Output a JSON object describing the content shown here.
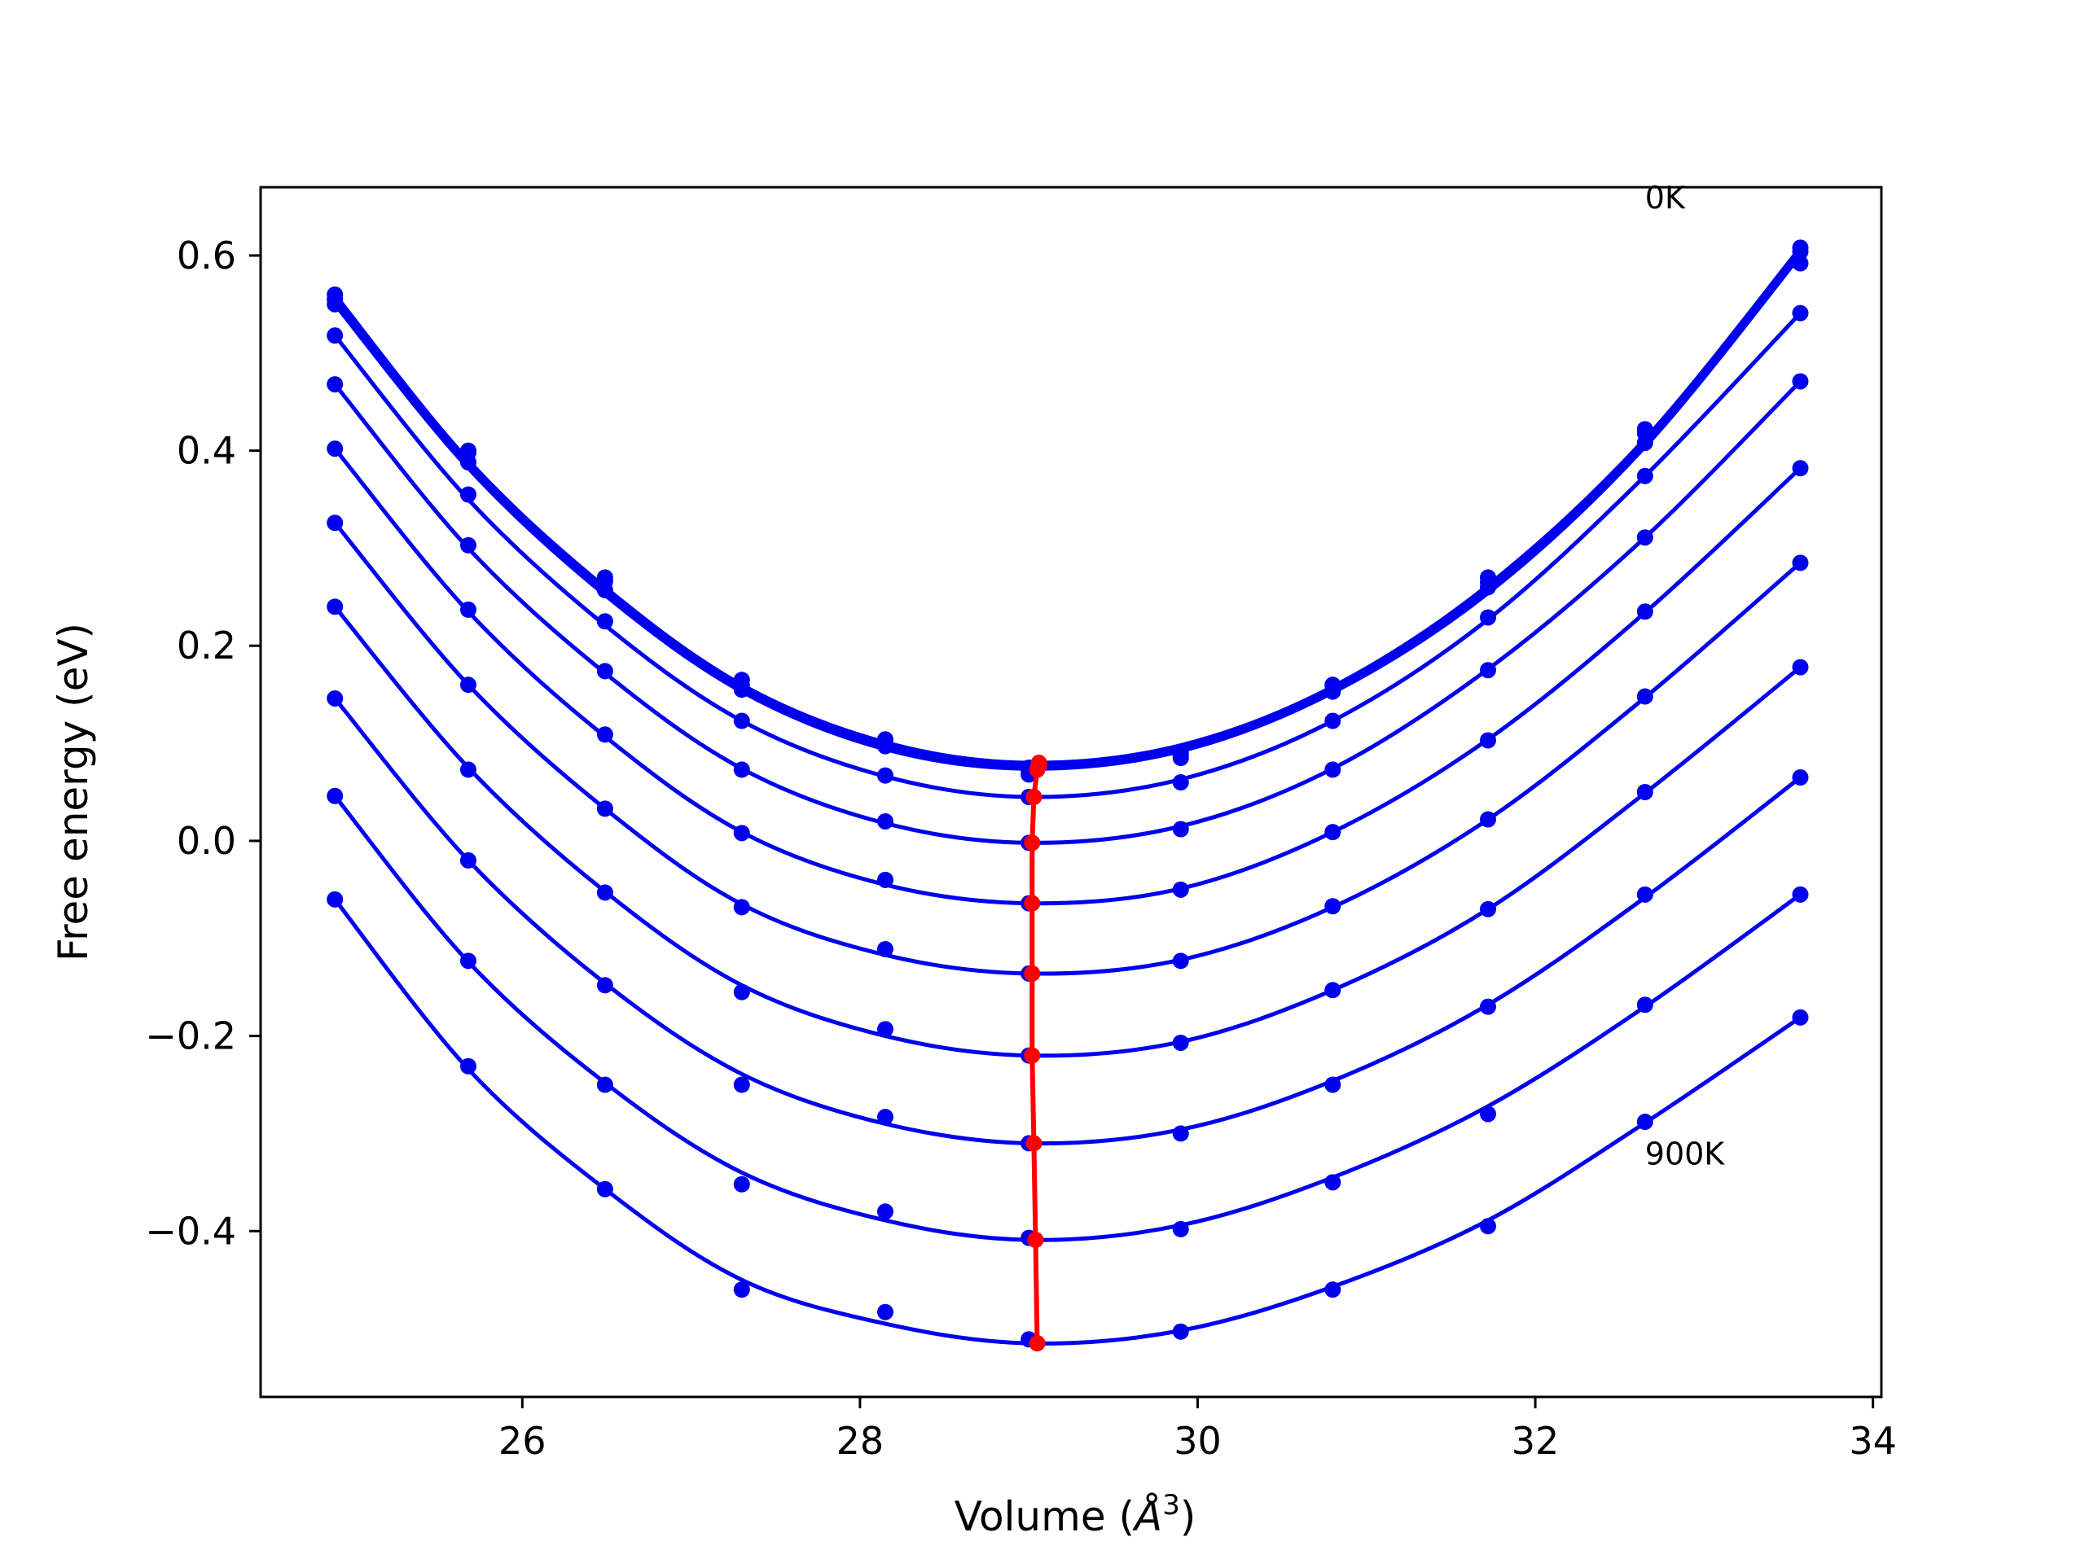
{
  "chart_data": {
    "type": "line",
    "xlabel": "Volume",
    "xlabel_unit": "3",
    "xlabel_unit_symbol": "Å",
    "ylabel": "Free energy (eV)",
    "xlim": [
      24.45,
      34.05
    ],
    "ylim": [
      -0.57,
      0.67
    ],
    "x_ticks": [
      26,
      28,
      30,
      32,
      34
    ],
    "x_tick_labels": [
      "26",
      "28",
      "30",
      "32",
      "34"
    ],
    "y_ticks": [
      -0.4,
      -0.2,
      0.0,
      0.2,
      0.4,
      0.6
    ],
    "y_tick_labels": [
      "−0.4",
      "−0.2",
      "0.0",
      "0.2",
      "0.4",
      "0.6"
    ],
    "grid": false,
    "annotations": [
      {
        "text": "0K",
        "x": 32.65,
        "y": 0.66
      },
      {
        "text": "900K",
        "x": 32.65,
        "y": -0.32
      }
    ],
    "volumes": [
      24.89,
      25.68,
      26.49,
      27.3,
      28.15,
      29.0,
      29.9,
      30.8,
      31.72,
      32.65,
      33.57
    ],
    "series": [
      {
        "points": [
          0.56,
          0.4,
          0.27,
          0.165,
          0.104,
          0.075,
          0.09,
          0.16,
          0.27,
          0.422,
          0.608
        ],
        "fit": [
          0.56,
          0.39,
          0.26,
          0.16,
          0.101,
          0.08,
          0.098,
          0.158,
          0.262,
          0.412,
          0.608
        ],
        "min": [
          29.06,
          0.08
        ]
      },
      {
        "points": [
          0.555,
          0.398,
          0.266,
          0.16,
          0.1,
          0.072,
          0.088,
          0.158,
          0.265,
          0.418,
          0.604
        ],
        "fit": [
          0.555,
          0.386,
          0.256,
          0.157,
          0.098,
          0.077,
          0.095,
          0.155,
          0.258,
          0.408,
          0.604
        ],
        "min": [
          29.06,
          0.077
        ]
      },
      {
        "points": [
          0.55,
          0.388,
          0.257,
          0.155,
          0.097,
          0.068,
          0.085,
          0.153,
          0.26,
          0.408,
          0.592
        ],
        "fit": [
          0.55,
          0.382,
          0.252,
          0.153,
          0.094,
          0.074,
          0.092,
          0.152,
          0.254,
          0.404,
          0.6
        ],
        "min": [
          29.05,
          0.073
        ]
      },
      {
        "points": [
          0.518,
          0.355,
          0.225,
          0.123,
          0.067,
          0.045,
          0.06,
          0.123,
          0.229,
          0.374,
          0.541
        ],
        "fit": [
          0.518,
          0.35,
          0.221,
          0.123,
          0.066,
          0.045,
          0.063,
          0.123,
          0.227,
          0.374,
          0.541
        ],
        "min": [
          29.03,
          0.045
        ]
      },
      {
        "points": [
          0.468,
          0.303,
          0.174,
          0.073,
          0.02,
          -0.002,
          0.012,
          0.073,
          0.175,
          0.311,
          0.471
        ],
        "fit": [
          0.468,
          0.3,
          0.172,
          0.074,
          0.018,
          -0.002,
          0.015,
          0.074,
          0.176,
          0.311,
          0.471
        ],
        "min": [
          29.02,
          -0.002
        ]
      },
      {
        "points": [
          0.402,
          0.237,
          0.109,
          0.008,
          -0.04,
          -0.064,
          -0.05,
          0.009,
          0.103,
          0.235,
          0.382
        ],
        "fit": [
          0.402,
          0.235,
          0.107,
          0.009,
          -0.045,
          -0.064,
          -0.049,
          0.009,
          0.104,
          0.234,
          0.382
        ],
        "min": [
          29.02,
          -0.064
        ]
      },
      {
        "points": [
          0.326,
          0.16,
          0.033,
          -0.068,
          -0.111,
          -0.136,
          -0.123,
          -0.067,
          0.022,
          0.148,
          0.285
        ],
        "fit": [
          0.326,
          0.16,
          0.033,
          -0.065,
          -0.117,
          -0.136,
          -0.122,
          -0.068,
          0.022,
          0.147,
          0.285
        ],
        "min": [
          29.02,
          -0.136
        ]
      },
      {
        "points": [
          0.24,
          0.073,
          -0.053,
          -0.155,
          -0.193,
          -0.22,
          -0.207,
          -0.153,
          -0.07,
          0.05,
          0.178
        ],
        "fit": [
          0.24,
          0.075,
          -0.052,
          -0.148,
          -0.2,
          -0.22,
          -0.206,
          -0.153,
          -0.07,
          0.049,
          0.178
        ],
        "min": [
          29.02,
          -0.22
        ]
      },
      {
        "points": [
          0.146,
          -0.02,
          -0.148,
          -0.25,
          -0.283,
          -0.31,
          -0.3,
          -0.25,
          -0.17,
          -0.055,
          0.065
        ],
        "fit": [
          0.146,
          -0.02,
          -0.146,
          -0.239,
          -0.29,
          -0.31,
          -0.296,
          -0.246,
          -0.168,
          -0.058,
          0.065
        ],
        "min": [
          29.03,
          -0.31
        ]
      },
      {
        "points": [
          0.046,
          -0.123,
          -0.25,
          -0.352,
          -0.38,
          -0.407,
          -0.398,
          -0.35,
          -0.28,
          -0.168,
          -0.055
        ],
        "fit": [
          0.046,
          -0.124,
          -0.248,
          -0.34,
          -0.389,
          -0.409,
          -0.394,
          -0.345,
          -0.272,
          -0.17,
          -0.055
        ],
        "min": [
          29.04,
          -0.409
        ]
      },
      {
        "points": [
          -0.06,
          -0.231,
          -0.357,
          -0.46,
          -0.483,
          -0.511,
          -0.503,
          -0.46,
          -0.395,
          -0.288,
          -0.181
        ],
        "fit": [
          -0.06,
          -0.234,
          -0.357,
          -0.45,
          -0.495,
          -0.515,
          -0.502,
          -0.457,
          -0.389,
          -0.289,
          -0.181
        ],
        "min": [
          29.05,
          -0.515
        ]
      }
    ],
    "min_line": {
      "x": [
        29.06,
        29.06,
        29.05,
        29.03,
        29.02,
        29.02,
        29.02,
        29.02,
        29.03,
        29.04,
        29.05
      ],
      "y": [
        0.08,
        0.077,
        0.073,
        0.045,
        -0.002,
        -0.064,
        -0.136,
        -0.22,
        -0.31,
        -0.409,
        -0.515
      ]
    },
    "colors": {
      "series": "#0000ee",
      "min_line": "#ff0000",
      "axes": "#000000",
      "background": "#ffffff"
    }
  }
}
